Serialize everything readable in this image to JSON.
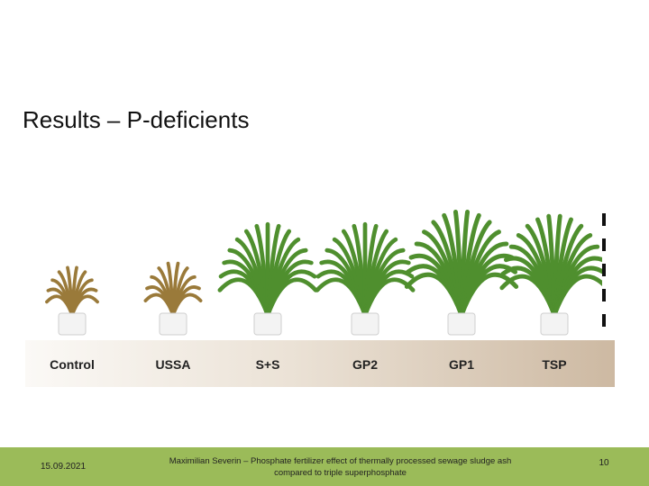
{
  "slide": {
    "title": "Results – P-deficients"
  },
  "plants": [
    {
      "label": "Control",
      "vigor": 0.35
    },
    {
      "label": "USSA",
      "vigor": 0.4
    },
    {
      "label": "S+S",
      "vigor": 0.85
    },
    {
      "label": "GP2",
      "vigor": 0.85
    },
    {
      "label": "GP1",
      "vigor": 1.0
    },
    {
      "label": "TSP",
      "vigor": 0.95
    }
  ],
  "colors": {
    "footer": "#9bbb59",
    "leaf_healthy": "#4f8f2e",
    "leaf_deficient": "#9a7a3a"
  },
  "footer": {
    "date": "15.09.2021",
    "author_line1": "Maximilian Severin – Phosphate fertilizer effect of thermally processed sewage sludge ash",
    "author_line2": "compared to triple superphosphate",
    "page_number": "10"
  }
}
